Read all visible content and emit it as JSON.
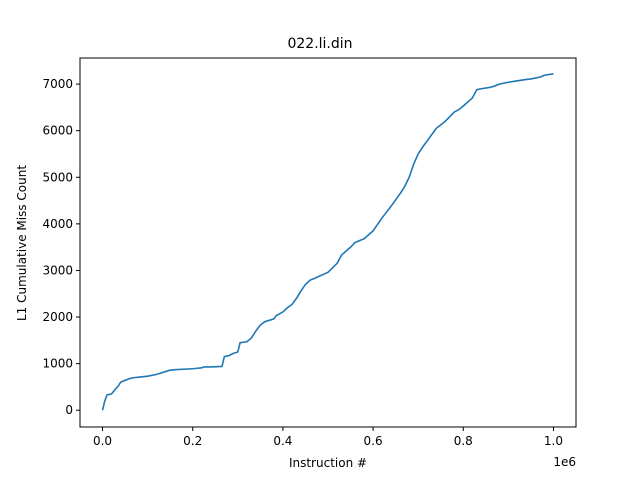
{
  "chart_data": {
    "type": "line",
    "title": "022.li.din",
    "xlabel": "Instruction #",
    "ylabel": "L1 Cumulative Miss Count",
    "x_offset_label": "1e6",
    "xlim": [
      -0.05,
      1.05
    ],
    "ylim": [
      -360,
      7560
    ],
    "xticks": [
      0.0,
      0.2,
      0.4,
      0.6,
      0.8,
      1.0
    ],
    "xtick_labels": [
      "0.0",
      "0.2",
      "0.4",
      "0.6",
      "0.8",
      "1.0"
    ],
    "yticks": [
      0,
      1000,
      2000,
      3000,
      4000,
      5000,
      6000,
      7000
    ],
    "ytick_labels": [
      "0",
      "1000",
      "2000",
      "3000",
      "4000",
      "5000",
      "6000",
      "7000"
    ],
    "grid": false,
    "line_color": "#1f77b4",
    "series": [
      {
        "x": [
          0.0,
          0.005,
          0.01,
          0.02,
          0.03,
          0.035,
          0.04,
          0.05,
          0.06,
          0.07,
          0.08,
          0.1,
          0.12,
          0.14,
          0.15,
          0.16,
          0.2,
          0.22,
          0.225,
          0.24,
          0.265,
          0.27,
          0.28,
          0.29,
          0.3,
          0.305,
          0.32,
          0.33,
          0.34,
          0.35,
          0.36,
          0.38,
          0.385,
          0.4,
          0.41,
          0.42,
          0.43,
          0.44,
          0.45,
          0.46,
          0.47,
          0.5,
          0.52,
          0.53,
          0.55,
          0.56,
          0.58,
          0.6,
          0.62,
          0.64,
          0.66,
          0.67,
          0.68,
          0.69,
          0.7,
          0.71,
          0.72,
          0.74,
          0.76,
          0.78,
          0.79,
          0.8,
          0.82,
          0.83,
          0.84,
          0.86,
          0.87,
          0.88,
          0.9,
          0.92,
          0.94,
          0.95,
          0.97,
          0.98,
          1.0
        ],
        "y": [
          0,
          200,
          330,
          350,
          470,
          520,
          600,
          640,
          680,
          700,
          710,
          730,
          770,
          830,
          860,
          870,
          890,
          910,
          930,
          930,
          940,
          1150,
          1170,
          1220,
          1250,
          1450,
          1470,
          1550,
          1700,
          1830,
          1900,
          1960,
          2030,
          2110,
          2200,
          2270,
          2400,
          2560,
          2700,
          2790,
          2830,
          2960,
          3150,
          3330,
          3500,
          3600,
          3680,
          3850,
          4130,
          4380,
          4650,
          4800,
          5000,
          5280,
          5500,
          5650,
          5780,
          6050,
          6200,
          6400,
          6450,
          6530,
          6700,
          6880,
          6900,
          6930,
          6960,
          7000,
          7040,
          7070,
          7100,
          7110,
          7150,
          7190,
          7220
        ]
      }
    ]
  }
}
